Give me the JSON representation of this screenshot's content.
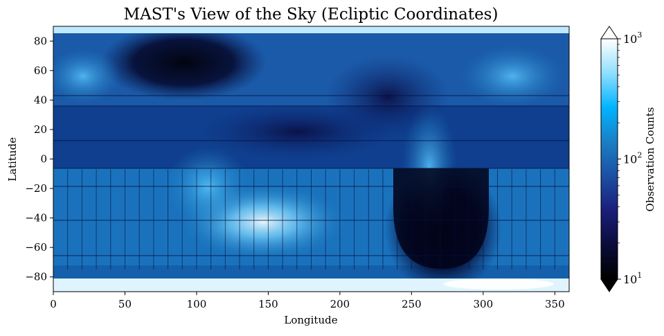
{
  "chart_data": {
    "type": "heatmap",
    "title": "MAST's View of the Sky (Ecliptic Coordinates)",
    "xlabel": "Longitude",
    "ylabel": "Latitude",
    "xlim": [
      0,
      360
    ],
    "ylim": [
      -90,
      90
    ],
    "xticks": [
      0,
      50,
      100,
      150,
      200,
      250,
      300,
      350
    ],
    "yticks": [
      -80,
      -60,
      -40,
      -20,
      0,
      20,
      40,
      60,
      80
    ],
    "colorbar": {
      "label": "Observation Counts",
      "scale": "log",
      "range": [
        10,
        1000
      ],
      "ticks": [
        {
          "value": 10,
          "base": "10",
          "exp": "1"
        },
        {
          "value": 100,
          "base": "10",
          "exp": "2"
        },
        {
          "value": 1000,
          "base": "10",
          "exp": "3"
        }
      ],
      "extend": "both",
      "colormap": [
        "#000000",
        "#0b0b3a",
        "#1a1f7a",
        "#1b4fa3",
        "#1a7fc4",
        "#00b4ff",
        "#8fdfff",
        "#ffffff"
      ]
    },
    "grid": false
  }
}
